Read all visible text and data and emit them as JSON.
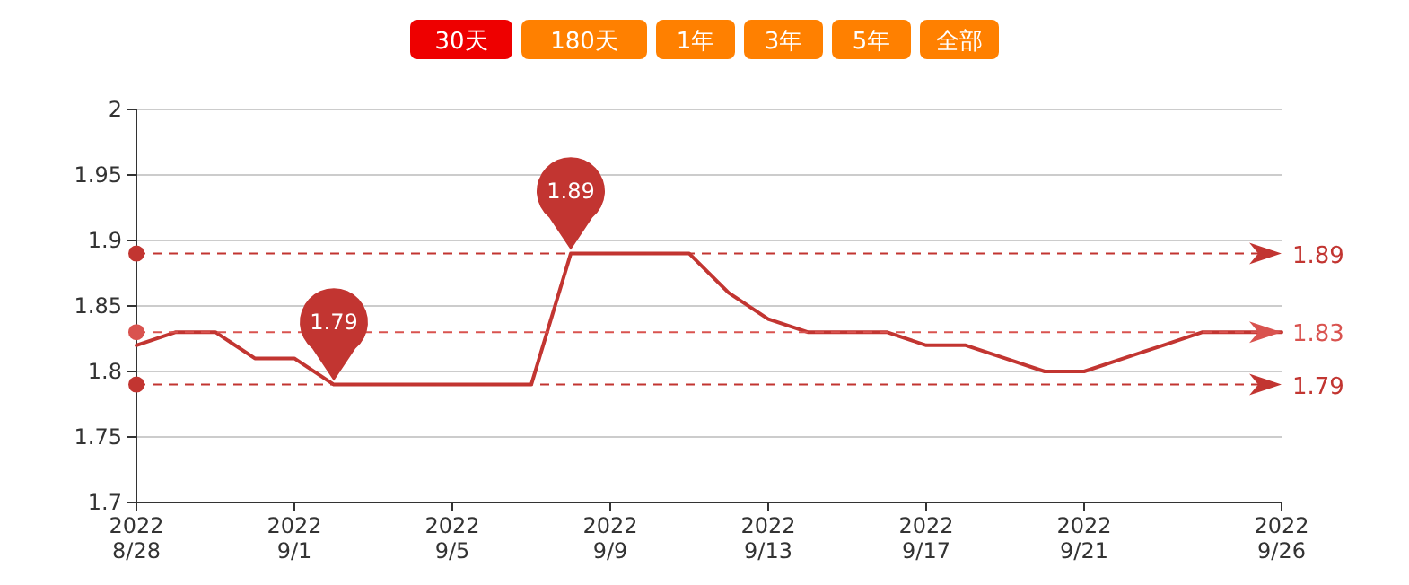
{
  "chart_data": {
    "type": "line",
    "annotations": [
      "30天",
      "180天",
      "1年",
      "3年",
      "5年",
      "全部",
      {
        "text": "1.89",
        "x": "2022-09-08",
        "y": 1.89
      },
      {
        "text": "1.79",
        "x": "2022-09-02",
        "y": 1.79
      }
    ],
    "x": [
      "2022-08-28",
      "2022-08-29",
      "2022-08-30",
      "2022-08-31",
      "2022-09-01",
      "2022-09-02",
      "2022-09-03",
      "2022-09-04",
      "2022-09-05",
      "2022-09-06",
      "2022-09-07",
      "2022-09-08",
      "2022-09-09",
      "2022-09-10",
      "2022-09-11",
      "2022-09-12",
      "2022-09-13",
      "2022-09-14",
      "2022-09-15",
      "2022-09-16",
      "2022-09-17",
      "2022-09-18",
      "2022-09-19",
      "2022-09-20",
      "2022-09-21",
      "2022-09-22",
      "2022-09-23",
      "2022-09-24",
      "2022-09-25",
      "2022-09-26"
    ],
    "series": [
      {
        "color": "#c23531",
        "values": [
          1.82,
          1.83,
          1.83,
          1.81,
          1.81,
          1.79,
          1.79,
          1.79,
          1.79,
          1.79,
          1.79,
          1.89,
          1.89,
          1.89,
          1.89,
          1.86,
          1.84,
          1.83,
          1.83,
          1.83,
          1.82,
          1.82,
          1.81,
          1.8,
          1.8,
          1.81,
          1.82,
          1.83,
          1.83,
          1.83
        ]
      }
    ],
    "xlim": [
      "2022-08-28",
      "2022-09-26"
    ],
    "xticks": [
      {
        "value": "2022-08-28",
        "label": "2022\n8/28"
      },
      {
        "value": "2022-09-01",
        "label": "2022\n9/1"
      },
      {
        "value": "2022-09-05",
        "label": "2022\n9/5"
      },
      {
        "value": "2022-09-09",
        "label": "2022\n9/9"
      },
      {
        "value": "2022-09-13",
        "label": "2022\n9/13"
      },
      {
        "value": "2022-09-17",
        "label": "2022\n9/17"
      },
      {
        "value": "2022-09-21",
        "label": "2022\n9/21"
      },
      {
        "value": "2022-09-26",
        "label": "2022\n9/26"
      }
    ],
    "ylim": [
      1.7,
      2
    ],
    "yticks": [
      {
        "value": 1.7,
        "label": "1.7"
      },
      1.75,
      {
        "value": 1.8,
        "label": "1.8"
      },
      1.85,
      {
        "value": 1.9,
        "label": "1.9"
      },
      1.95,
      {
        "value": 2,
        "label": "2"
      }
    ],
    "ref_lines": [
      {
        "axis": "y",
        "value": 1.89,
        "label": "1.89",
        "color": "#c23531",
        "line_style": "dashed"
      },
      {
        "axis": "y",
        "value": 1.83,
        "label": "1.83",
        "color": "#d9534f",
        "line_style": "dashed"
      },
      {
        "axis": "y",
        "value": 1.79,
        "label": "1.79",
        "color": "#c23531",
        "line_style": "dashed"
      }
    ],
    "grid": "y",
    "marker": "none",
    "line_style": "solid"
  }
}
